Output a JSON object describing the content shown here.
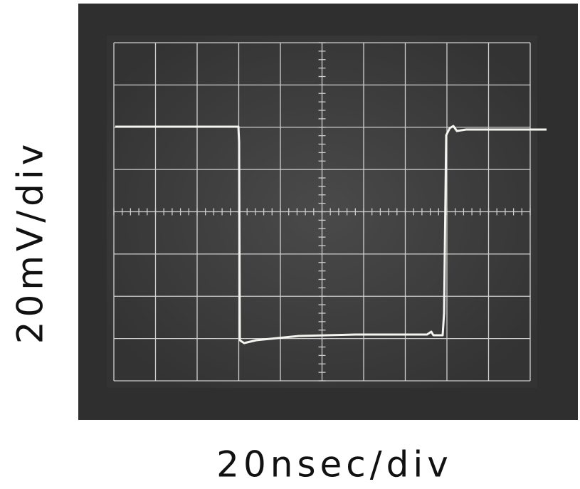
{
  "y_axis_label": "20mV/div",
  "x_axis_label": "20nsec/div"
}
